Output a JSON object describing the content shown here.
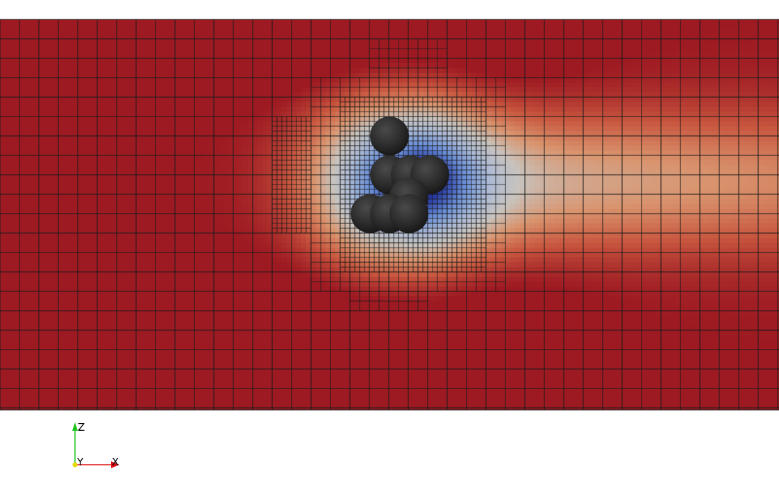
{
  "orientation_axes": {
    "labels": {
      "z": "Z",
      "y": "Y",
      "x": "X"
    },
    "colors": {
      "z": "#19c419",
      "y": "#e6d800",
      "x": "#e01010"
    }
  },
  "field_colormap": {
    "high": "#9e1a22",
    "mid_high": "#c8573f",
    "warm": "#d9946e",
    "neutral": "#c8c3bd",
    "cool": "#a9b9d6",
    "low": "#6a8fd8",
    "min": "#1f2f9a"
  },
  "particles": {
    "color": "#2a2a2a",
    "count": 8
  },
  "mesh": {
    "line_color": "#1a1a1a",
    "refinement_levels": 3
  }
}
